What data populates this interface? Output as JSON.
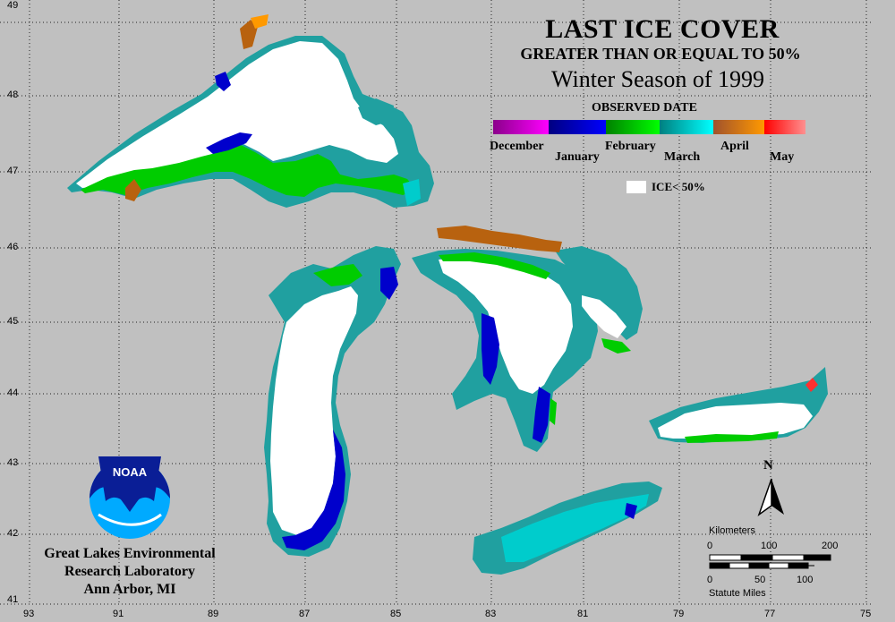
{
  "title": "LAST ICE COVER",
  "subtitle": "GREATER THAN OR EQUAL TO 50%",
  "season": "Winter Season of 1999",
  "legend": {
    "heading": "OBSERVED DATE",
    "months": [
      "December",
      "January",
      "February",
      "March",
      "April",
      "May"
    ],
    "ice_less_label": "ICE< 50%"
  },
  "colors": {
    "background": "#c0c0c0",
    "december": "#cc00cc",
    "january": "#0000cc",
    "february": "#00cc00",
    "march": "#00cccc",
    "march_dark": "#20a0a0",
    "april": "#b8620f",
    "may": "#ff3030",
    "ice_less": "#ffffff"
  },
  "axes": {
    "lat_labels": [
      "49",
      "48",
      "47",
      "46",
      "45",
      "44",
      "43",
      "42",
      "41"
    ],
    "lon_labels": [
      "93",
      "91",
      "89",
      "87",
      "85",
      "83",
      "81",
      "79",
      "77",
      "75"
    ]
  },
  "north_label": "N",
  "scale": {
    "km_label": "Kilometers",
    "km_ticks": [
      "0",
      "100",
      "200"
    ],
    "mi_ticks": [
      "0",
      "50",
      "100"
    ],
    "mi_label": "Statute Miles"
  },
  "logo_text": "NOAA",
  "org": {
    "line1": "Great Lakes Environmental",
    "line2": "Research Laboratory",
    "line3": "Ann Arbor, MI"
  }
}
